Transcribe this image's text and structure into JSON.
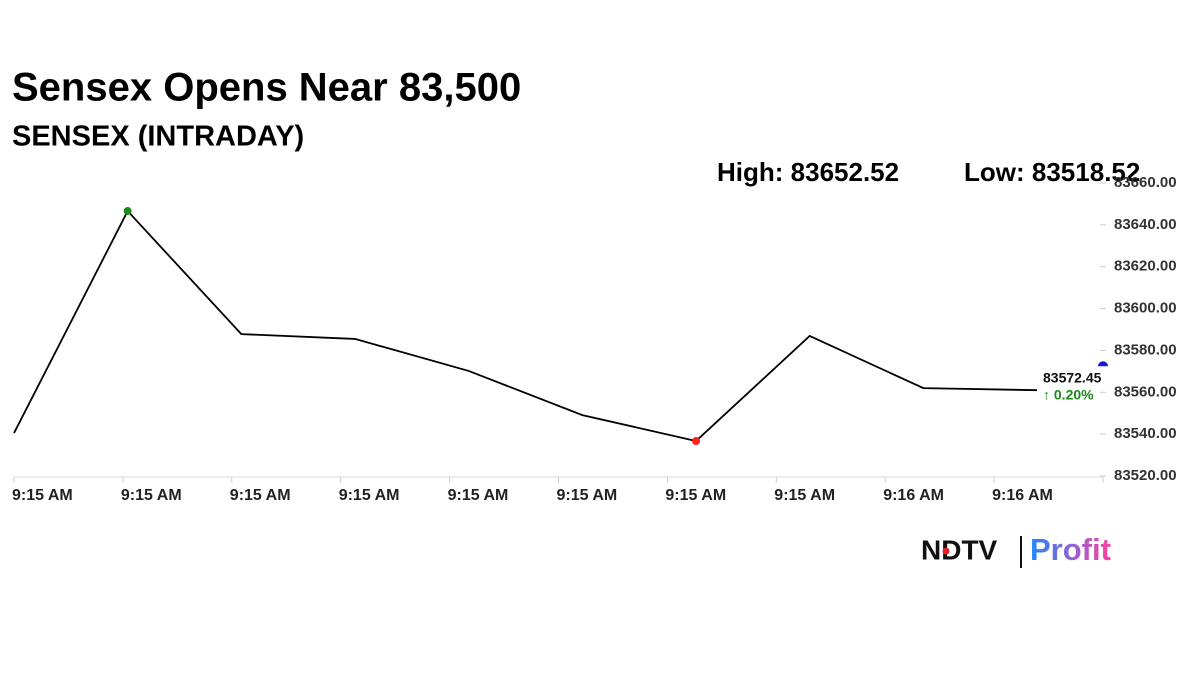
{
  "chart_data": {
    "type": "line",
    "title": "Sensex Opens Near 83,500",
    "subtitle": "SENSEX (INTRADAY)",
    "high": {
      "label": "High:",
      "value": 83652.52
    },
    "low": {
      "label": "Low:",
      "value": 83518.52
    },
    "categories": [
      "9:15 AM",
      "9:15 AM",
      "9:15 AM",
      "9:15 AM",
      "9:15 AM",
      "9:15 AM",
      "9:15 AM",
      "9:15 AM",
      "9:16 AM",
      "9:16 AM"
    ],
    "series": [
      {
        "name": "SENSEX",
        "color": "#000000",
        "values": [
          83540.5,
          83646.6,
          83587.8,
          83585.5,
          83570.2,
          83549.1,
          83536.7,
          83586.9,
          83562,
          83561
        ]
      }
    ],
    "high_color": "#1a8a1a",
    "low_color": "#ff2020",
    "last_value": 83572.45,
    "last_color": "#1a1acc",
    "change_label": "↑ 0.20%",
    "change_color": "#1a8a1a",
    "ylim": [
      83520,
      83660
    ],
    "yticks": [
      {
        "value": 83520,
        "label": "83520.00"
      },
      {
        "value": 83540,
        "label": "83540.00"
      },
      {
        "value": 83560,
        "label": "83560.00"
      },
      {
        "value": 83580,
        "label": "83580.00"
      },
      {
        "value": 83600,
        "label": "83600.00"
      },
      {
        "value": 83620,
        "label": "83620.00"
      },
      {
        "value": 83640,
        "label": "83640.00"
      },
      {
        "value": 83660,
        "label": "83660.00"
      }
    ],
    "logo": {
      "left": "NDTV",
      "right": "Profit"
    }
  }
}
